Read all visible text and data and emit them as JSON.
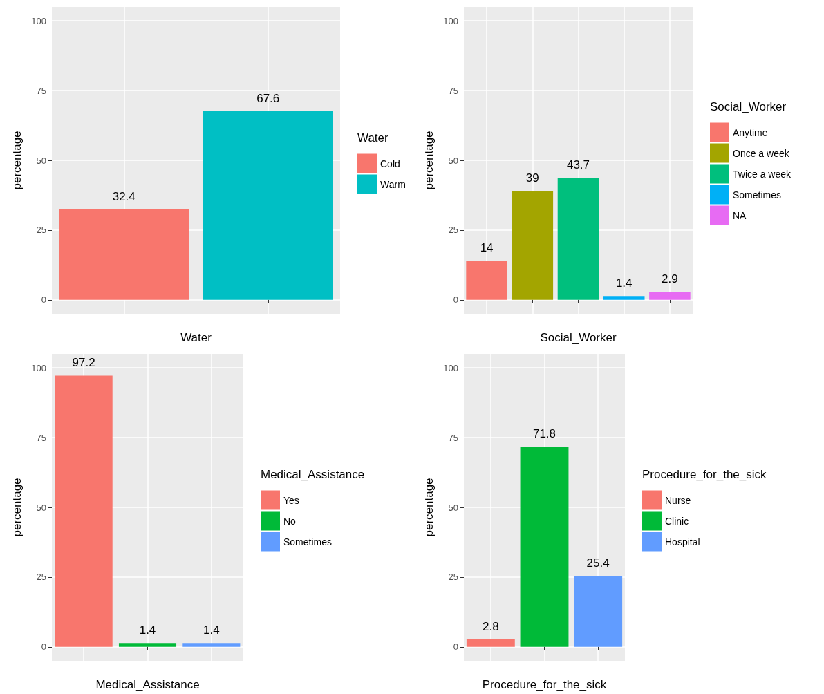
{
  "chart_data": [
    {
      "type": "bar",
      "xlabel": "Water",
      "ylabel": "percentage",
      "legend_title": "Water",
      "categories": [
        null,
        null
      ],
      "ylim": [
        -5,
        105
      ],
      "yticks": [
        0,
        25,
        50,
        75,
        100
      ],
      "grid": true,
      "legend": "right",
      "data_labels": true,
      "series": [
        {
          "name": "Cold",
          "color": "#f8766d",
          "values": [
            32.4,
            null
          ]
        },
        {
          "name": "Warm",
          "color": "#00bfc4",
          "values": [
            null,
            67.6
          ]
        }
      ]
    },
    {
      "type": "bar",
      "xlabel": "Social_Worker",
      "ylabel": "percentage",
      "legend_title": "Social_Worker",
      "categories": [
        null,
        null,
        null,
        null,
        null
      ],
      "ylim": [
        -5,
        105
      ],
      "yticks": [
        0,
        25,
        50,
        75,
        100
      ],
      "grid": true,
      "legend": "right",
      "data_labels": true,
      "series": [
        {
          "name": "Anytime",
          "color": "#f8766d",
          "values": [
            14,
            null,
            null,
            null,
            null
          ]
        },
        {
          "name": "Once a week",
          "color": "#a3a500",
          "values": [
            null,
            39,
            null,
            null,
            null
          ]
        },
        {
          "name": "Twice a week",
          "color": "#00bf7d",
          "values": [
            null,
            null,
            43.7,
            null,
            null
          ]
        },
        {
          "name": "Sometimes",
          "color": "#00b0f6",
          "values": [
            null,
            null,
            null,
            1.4,
            null
          ]
        },
        {
          "name": "NA",
          "color": "#e76bf3",
          "values": [
            null,
            null,
            null,
            null,
            2.9
          ]
        }
      ]
    },
    {
      "type": "bar",
      "xlabel": "Medical_Assistance",
      "ylabel": "percentage",
      "legend_title": "Medical_Assistance",
      "categories": [
        null,
        null,
        null
      ],
      "ylim": [
        -5,
        105
      ],
      "yticks": [
        0,
        25,
        50,
        75,
        100
      ],
      "grid": true,
      "legend": "right",
      "data_labels": true,
      "series": [
        {
          "name": "Yes",
          "color": "#f8766d",
          "values": [
            97.2,
            null,
            null
          ]
        },
        {
          "name": "No",
          "color": "#00ba38",
          "values": [
            null,
            1.4,
            null
          ]
        },
        {
          "name": "Sometimes",
          "color": "#619cff",
          "values": [
            null,
            null,
            1.4
          ]
        }
      ]
    },
    {
      "type": "bar",
      "xlabel": "Procedure_for_the_sick",
      "ylabel": "percentage",
      "legend_title": "Procedure_for_the_sick",
      "categories": [
        null,
        null,
        null
      ],
      "ylim": [
        -5,
        105
      ],
      "yticks": [
        0,
        25,
        50,
        75,
        100
      ],
      "grid": true,
      "legend": "right",
      "data_labels": true,
      "series": [
        {
          "name": "Nurse",
          "color": "#f8766d",
          "values": [
            2.8,
            null,
            null
          ]
        },
        {
          "name": "Clinic",
          "color": "#00ba38",
          "values": [
            null,
            71.8,
            null
          ]
        },
        {
          "name": "Hospital",
          "color": "#619cff",
          "values": [
            null,
            null,
            25.4
          ]
        }
      ]
    }
  ]
}
